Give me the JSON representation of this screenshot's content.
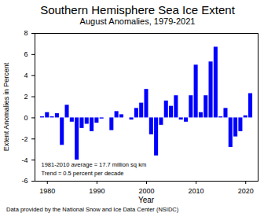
{
  "chart_data": {
    "type": "bar",
    "title": "Southern Hemisphere Sea Ice Extent",
    "subtitle": "August Anomalies, 1979-2021",
    "x_label": "Year",
    "y_label": "Extent Anomalies in Percent",
    "annotations": [
      "1981-2010 average = 17.7 million sq km",
      "Trend = 0.5 percent per decade"
    ],
    "caption": "Data provided by the National Snow and Ice Data Center (NSIDC)",
    "x": [
      1979,
      1980,
      1981,
      1982,
      1983,
      1984,
      1985,
      1986,
      1987,
      1988,
      1989,
      1990,
      1991,
      1992,
      1993,
      1994,
      1995,
      1996,
      1997,
      1998,
      1999,
      2000,
      2001,
      2002,
      2003,
      2004,
      2005,
      2006,
      2007,
      2008,
      2009,
      2010,
      2011,
      2012,
      2013,
      2014,
      2015,
      2016,
      2017,
      2018,
      2019,
      2020,
      2021
    ],
    "values": [
      0.1,
      0.5,
      0.1,
      0.4,
      -2.6,
      1.2,
      -0.4,
      -4.0,
      -1.0,
      -0.6,
      -1.3,
      -0.5,
      -0.1,
      0.0,
      -1.2,
      0.6,
      0.3,
      0.0,
      -0.2,
      0.9,
      1.4,
      2.7,
      -1.6,
      -3.6,
      -0.7,
      1.6,
      1.1,
      2.1,
      -0.2,
      -0.4,
      2.1,
      5.0,
      0.5,
      2.1,
      5.3,
      6.7,
      0.1,
      0.9,
      -2.8,
      -1.8,
      -1.3,
      0.2,
      2.3
    ],
    "color": "#0000ff",
    "xlim": [
      1977.5,
      2022.5
    ],
    "xticks": [
      1980,
      1990,
      2000,
      2010,
      2020
    ],
    "ylim": [
      -6,
      8
    ],
    "yticks": [
      -6,
      -4,
      -2,
      0,
      2,
      4,
      6,
      8
    ],
    "grid": false
  }
}
